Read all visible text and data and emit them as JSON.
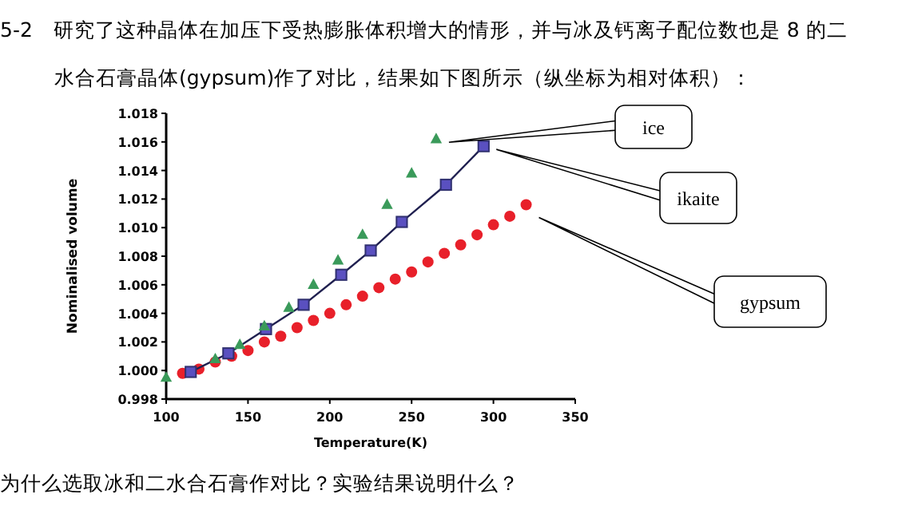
{
  "chart_data": {
    "type": "scatter",
    "xlabel": "Temperature(K)",
    "ylabel": "Nominalised volume",
    "annotations": [
      "5-2　研究了这种晶体在加压下受热膨胀体积增大的情形，并与冰及钙离子配位数也是 8 的二水合石膏晶体(gypsum)作了对比，结果如下图所示（纵坐标为相对体积）：",
      "为什么选取冰和二水合石膏作对比？实验结果说明什么？"
    ],
    "xlim": [
      100,
      350
    ],
    "xticks": [
      100,
      150,
      200,
      250,
      300,
      350
    ],
    "ylim": [
      0.998,
      1.018
    ],
    "yticks": [
      {
        "value": 0.998,
        "label": "0.998"
      },
      {
        "value": 1.0,
        "label": "1.000"
      },
      {
        "value": 1.002,
        "label": "1.002"
      },
      {
        "value": 1.004,
        "label": "1.004"
      },
      {
        "value": 1.006,
        "label": "1.006"
      },
      {
        "value": 1.008,
        "label": "1.008"
      },
      {
        "value": 1.01,
        "label": "1.010"
      },
      {
        "value": 1.012,
        "label": "1.012"
      },
      {
        "value": 1.014,
        "label": "1.014"
      },
      {
        "value": 1.016,
        "label": "1.016"
      },
      {
        "value": 1.018,
        "label": "1.018"
      }
    ],
    "grid": false,
    "legend": false,
    "series": [
      {
        "name": "ice",
        "marker": "triangle",
        "color": "#3a9a5a",
        "x": [
          100,
          130,
          145,
          160,
          175,
          190,
          205,
          220,
          235,
          250,
          265
        ],
        "values": [
          0.9995,
          1.0008,
          1.0018,
          1.0031,
          1.0044,
          1.006,
          1.0077,
          1.0095,
          1.0116,
          1.0138,
          1.0162
        ]
      },
      {
        "name": "ikaite",
        "type": "line",
        "marker": "square",
        "color": "#5a50c0",
        "x": [
          115,
          138,
          161,
          184,
          207,
          225,
          244,
          271,
          294
        ],
        "values": [
          0.9999,
          1.0012,
          1.0029,
          1.0046,
          1.0067,
          1.0084,
          1.0104,
          1.013,
          1.0157
        ]
      },
      {
        "name": "gypsum",
        "marker": "circle",
        "color": "#e8202a",
        "x": [
          110,
          120,
          130,
          140,
          150,
          160,
          170,
          180,
          190,
          200,
          210,
          220,
          230,
          240,
          250,
          260,
          270,
          280,
          290,
          300,
          310,
          320
        ],
        "values": [
          0.9998,
          1.0001,
          1.0006,
          1.001,
          1.0014,
          1.002,
          1.0024,
          1.003,
          1.0035,
          1.004,
          1.0046,
          1.0052,
          1.0058,
          1.0064,
          1.0069,
          1.0076,
          1.0082,
          1.0088,
          1.0095,
          1.0102,
          1.0108,
          1.0116
        ]
      }
    ]
  }
}
